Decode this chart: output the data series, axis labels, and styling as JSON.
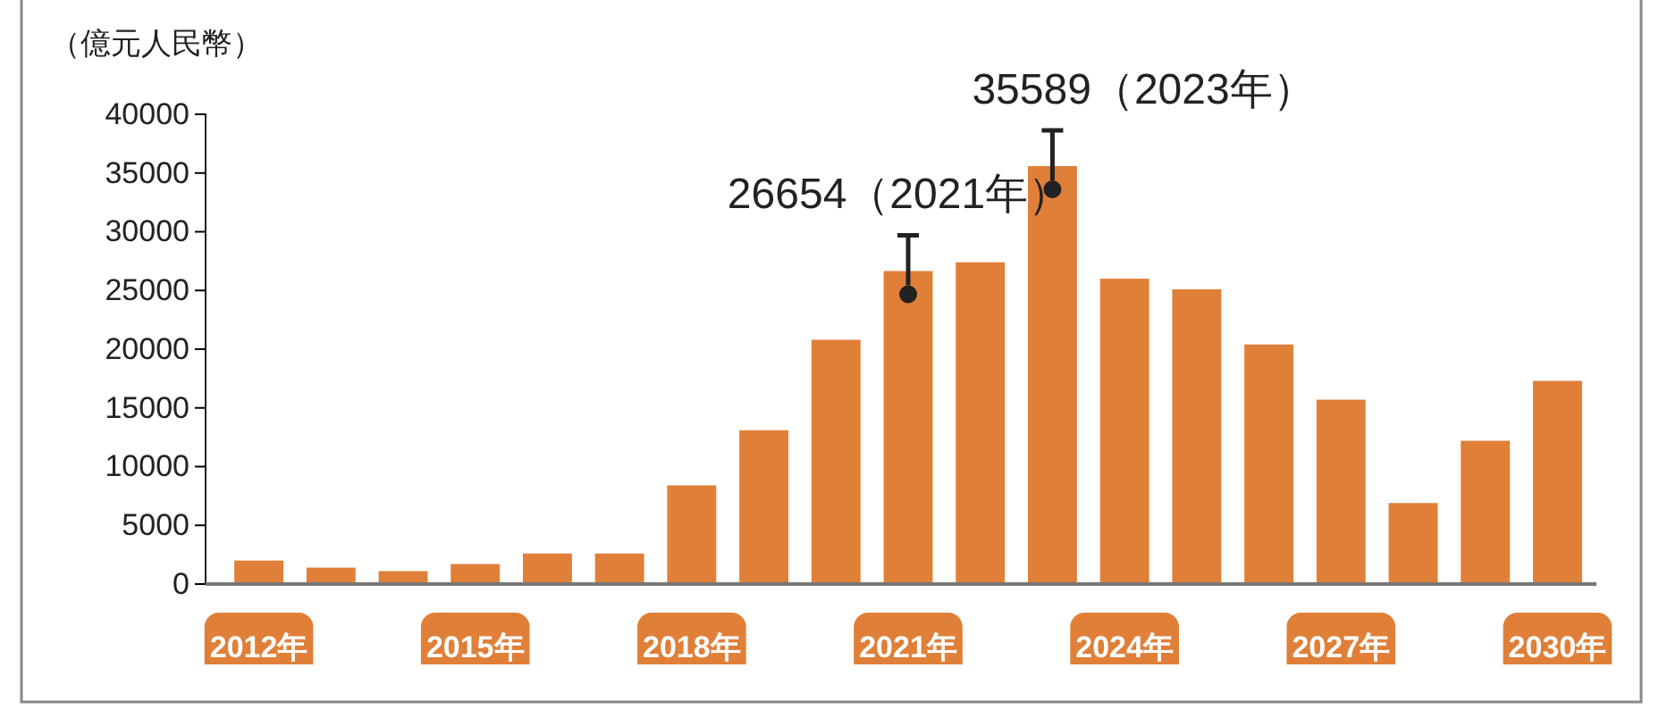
{
  "chart_data": {
    "type": "bar",
    "ylabel": "（億元人民幣）",
    "categories": [
      "2012年",
      null,
      null,
      "2015年",
      null,
      null,
      "2018年",
      null,
      null,
      "2021年",
      null,
      null,
      "2024年",
      null,
      null,
      "2027年",
      null,
      null,
      "2030年"
    ],
    "values": [
      2000,
      1400,
      1100,
      1700,
      2600,
      2600,
      8400,
      13100,
      20800,
      26654,
      27400,
      35589,
      26000,
      25100,
      20400,
      15700,
      6900,
      12200,
      17300
    ],
    "color": "#e07f38",
    "ylim": [
      0,
      40000
    ],
    "yticks": [
      0,
      5000,
      10000,
      15000,
      20000,
      25000,
      30000,
      35000,
      40000
    ],
    "grid": false,
    "value_labels": [
      null,
      null,
      null,
      null,
      null,
      null,
      null,
      null,
      null,
      "26654（2021年）",
      null,
      "35589（2023年）",
      null,
      null,
      null,
      null,
      null,
      null,
      null
    ]
  }
}
